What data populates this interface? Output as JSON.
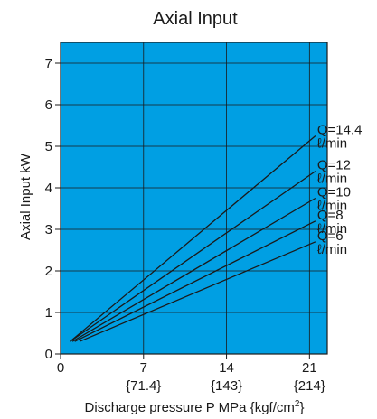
{
  "chart_data": {
    "type": "line",
    "title": "Axial Input",
    "xlabel": "Discharge pressure P MPa {kgf/cm",
    "xlabel_sup": "2",
    "xlabel_close": "}",
    "ylabel": "Axial Input kW",
    "xlim": [
      0,
      22.5
    ],
    "ylim": [
      0,
      7.5
    ],
    "x_ticks": [
      0,
      7,
      14,
      21
    ],
    "x_tick_labels": [
      "0",
      "7",
      "14",
      "21"
    ],
    "x_sub_ticks": [
      7,
      14,
      21
    ],
    "x_sub_tick_labels": [
      "{71.4}",
      "{143}",
      "{214}"
    ],
    "y_ticks": [
      0,
      1,
      2,
      3,
      4,
      5,
      6,
      7
    ],
    "y_tick_labels": [
      "0",
      "1",
      "2",
      "3",
      "4",
      "5",
      "6",
      "7"
    ],
    "grid": true,
    "plot_bg": "#009fe3",
    "line_color": "#1a1a1a",
    "series": [
      {
        "name": "Q=14.4",
        "unit": "ℓ/min",
        "points": [
          [
            0.8,
            0.3
          ],
          [
            21.5,
            5.25
          ]
        ]
      },
      {
        "name": "Q=12",
        "unit": "ℓ/min",
        "points": [
          [
            0.8,
            0.3
          ],
          [
            21.5,
            4.4
          ]
        ]
      },
      {
        "name": "Q=10",
        "unit": "ℓ/min",
        "points": [
          [
            1.0,
            0.3
          ],
          [
            21.5,
            3.75
          ]
        ]
      },
      {
        "name": "Q=8",
        "unit": "ℓ/min",
        "points": [
          [
            1.2,
            0.3
          ],
          [
            21.5,
            3.2
          ]
        ]
      },
      {
        "name": "Q=6",
        "unit": "ℓ/min",
        "points": [
          [
            1.6,
            0.3
          ],
          [
            21.5,
            2.7
          ]
        ]
      }
    ]
  }
}
